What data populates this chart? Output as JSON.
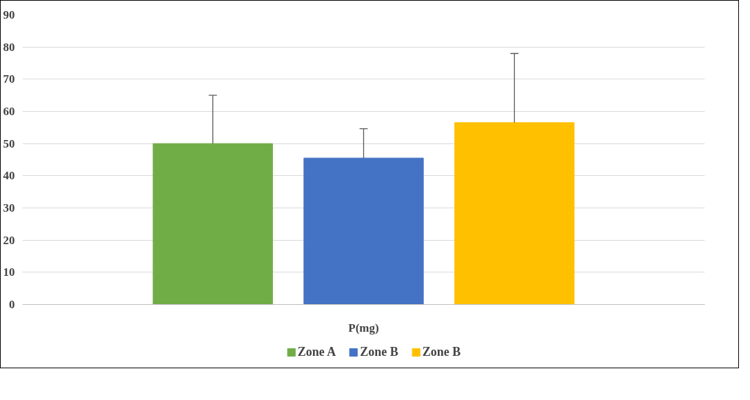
{
  "chart_data": {
    "type": "bar",
    "categories": [
      "P(mg)"
    ],
    "series": [
      {
        "name": "Zone A",
        "color": "#70ad47",
        "values": [
          50
        ],
        "errors": [
          [
            50,
            65
          ]
        ]
      },
      {
        "name": "Zone B",
        "color": "#4472c4",
        "values": [
          45.5
        ],
        "errors": [
          [
            45.5,
            54.6
          ]
        ]
      },
      {
        "name": "Zone B",
        "color": "#ffc000",
        "values": [
          56.5
        ],
        "errors": [
          [
            56.5,
            78
          ]
        ]
      }
    ],
    "ylim": [
      0,
      90
    ],
    "yticks": [
      0,
      10,
      20,
      30,
      40,
      50,
      60,
      70,
      80,
      90
    ],
    "grid": "y",
    "legend": "bottom"
  }
}
